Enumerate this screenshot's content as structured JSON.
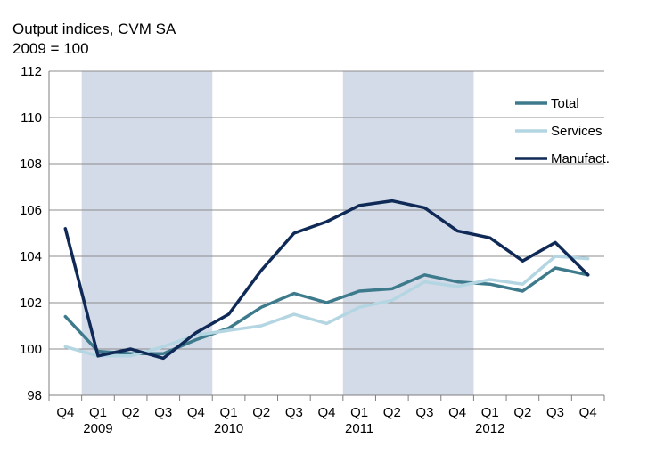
{
  "chart_data": {
    "type": "line",
    "title_lines": [
      "Output indices, CVM SA",
      "2009 = 100"
    ],
    "xlabel": "",
    "ylabel": "",
    "ylim": [
      98,
      112
    ],
    "y_ticks": [
      "98",
      "100",
      "102",
      "104",
      "106",
      "108",
      "110",
      "112"
    ],
    "grid": true,
    "legend_position": "top-right",
    "categories": [
      "Q4",
      "Q1",
      "Q2",
      "Q3",
      "Q4",
      "Q1",
      "Q2",
      "Q3",
      "Q4",
      "Q1",
      "Q2",
      "Q3",
      "Q4",
      "Q1",
      "Q2",
      "Q3",
      "Q4"
    ],
    "year_labels": [
      {
        "label": "2009",
        "at_category": 1
      },
      {
        "label": "2010",
        "at_category": 5
      },
      {
        "label": "2011",
        "at_category": 9
      },
      {
        "label": "2012",
        "at_category": 13
      }
    ],
    "shaded_periods": [
      {
        "from_category": 1,
        "to_category": 4
      },
      {
        "from_category": 9,
        "to_category": 12
      }
    ],
    "shade_color": "#d3dae8",
    "series": [
      {
        "name": "Total",
        "color": "#3d7b8c",
        "values": [
          101.4,
          99.9,
          99.8,
          99.8,
          100.4,
          100.9,
          101.8,
          102.4,
          102.0,
          102.5,
          102.6,
          103.2,
          102.9,
          102.8,
          102.5,
          103.5,
          103.2
        ]
      },
      {
        "name": "Services",
        "color": "#b4d6e2",
        "values": [
          100.1,
          99.7,
          99.7,
          100.1,
          100.6,
          100.8,
          101.0,
          101.5,
          101.1,
          101.8,
          102.1,
          102.9,
          102.7,
          103.0,
          102.8,
          104.0,
          103.9
        ]
      },
      {
        "name": "Manufact.",
        "color": "#0f2a56",
        "values": [
          105.2,
          99.7,
          100.0,
          99.6,
          100.7,
          101.5,
          103.4,
          105.0,
          105.5,
          106.2,
          106.4,
          106.1,
          105.1,
          104.8,
          103.8,
          104.6,
          103.2
        ]
      }
    ]
  }
}
